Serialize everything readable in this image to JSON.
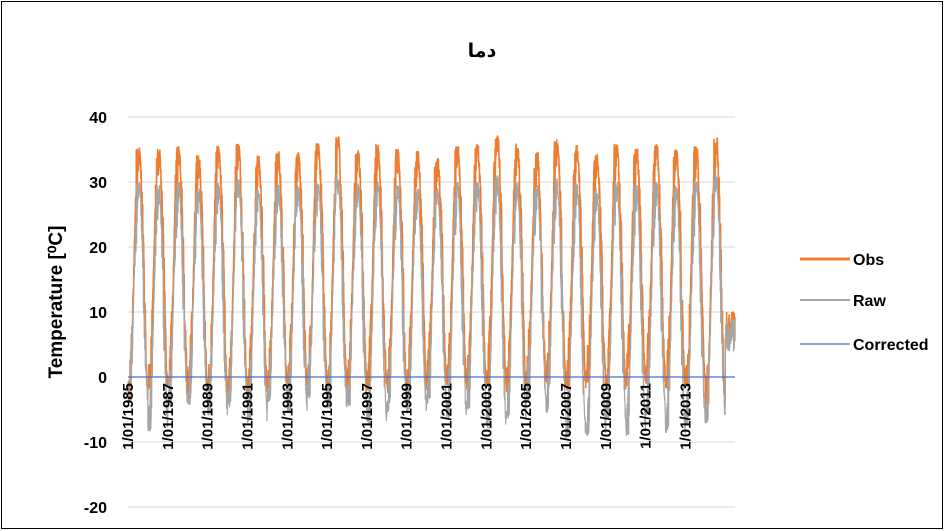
{
  "chart_data": {
    "type": "line",
    "title": "دما",
    "xlabel": "",
    "ylabel": "Temperature [⁰C]",
    "ylim": [
      -20,
      40
    ],
    "yticks": [
      40,
      30,
      20,
      10,
      0,
      -10,
      -20
    ],
    "ytick_labels": [
      "40",
      "30",
      "20",
      "10",
      "0",
      "-10",
      "-20"
    ],
    "x_range": [
      "1/01/1985",
      "30/06/2015"
    ],
    "xtick_labels": [
      "1/01/1985",
      "1/01/1987",
      "1/01/1989",
      "1/01/1991",
      "1/01/1993",
      "1/01/1995",
      "1/01/1997",
      "1/01/1999",
      "1/01/2001",
      "1/01/2003",
      "1/01/2005",
      "1/01/2007",
      "1/01/2009",
      "1/01/2011",
      "1/01/2013"
    ],
    "grid": true,
    "legend_position": "right",
    "series": [
      {
        "name": "Obs",
        "color": "#ED7D31",
        "years": [
          1985,
          1986,
          1987,
          1988,
          1989,
          1990,
          1991,
          1992,
          1993,
          1994,
          1995,
          1996,
          1997,
          1998,
          1999,
          2000,
          2001,
          2002,
          2003,
          2004,
          2005,
          2006,
          2007,
          2008,
          2009,
          2010,
          2011,
          2012,
          2013,
          2014,
          2015
        ],
        "summer_max": [
          35.5,
          35.0,
          35.5,
          34.2,
          35.5,
          35.8,
          34.0,
          34.7,
          34.6,
          36.0,
          37.0,
          35.2,
          35.8,
          35.0,
          34.8,
          33.8,
          35.5,
          35.8,
          37.5,
          36.0,
          34.5,
          36.6,
          35.6,
          34.5,
          36.0,
          35.2,
          35.8,
          35.0,
          35.4,
          36.8,
          10.0
        ],
        "winter_min": [
          -3.5,
          -2.0,
          -1.5,
          -2.5,
          -3.0,
          -3.5,
          -3.0,
          -2.0,
          -2.0,
          -1.0,
          -2.5,
          -1.5,
          -2.0,
          -2.5,
          -2.0,
          -1.0,
          -1.5,
          -2.0,
          -1.5,
          -2.5,
          -1.0,
          -1.5,
          -2.0,
          -1.0,
          -2.0,
          -1.5,
          -1.0,
          -2.0,
          -1.5,
          -5.0,
          5.0
        ]
      },
      {
        "name": "Raw",
        "color": "#A5A5A5",
        "years": [
          1985,
          1986,
          1987,
          1988,
          1989,
          1990,
          1991,
          1992,
          1993,
          1994,
          1995,
          1996,
          1997,
          1998,
          1999,
          2000,
          2001,
          2002,
          2003,
          2004,
          2005,
          2006,
          2007,
          2008,
          2009,
          2010,
          2011,
          2012,
          2013,
          2014,
          2015
        ],
        "summer_max": [
          30.0,
          29.5,
          30.0,
          29.0,
          30.0,
          30.5,
          29.0,
          29.5,
          29.5,
          30.0,
          31.0,
          29.8,
          30.0,
          29.5,
          29.0,
          29.0,
          30.0,
          30.0,
          31.0,
          30.0,
          29.5,
          30.5,
          30.0,
          29.0,
          30.0,
          29.5,
          30.0,
          29.5,
          30.0,
          31.0,
          9.0
        ],
        "winter_min": [
          -4.0,
          -8.5,
          -5.0,
          -4.5,
          -6.0,
          -5.0,
          -7.0,
          -4.0,
          -5.5,
          -3.5,
          -5.0,
          -4.5,
          -7.5,
          -5.5,
          -6.0,
          -4.5,
          -6.5,
          -5.0,
          -8.0,
          -6.5,
          -4.0,
          -5.5,
          -9.5,
          -9.0,
          -6.5,
          -9.0,
          -6.0,
          -9.0,
          -7.5,
          -7.0,
          4.0
        ]
      },
      {
        "name": "Corrected",
        "color": "#4472C4",
        "values": [
          0,
          0
        ]
      }
    ]
  }
}
